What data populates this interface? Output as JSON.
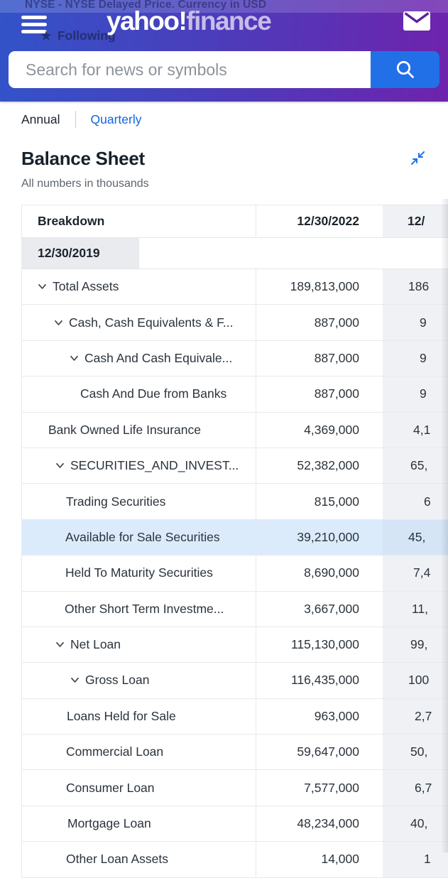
{
  "masthead": {
    "ticker_info": "NYSE - NYSE Delayed Price. Currency in USD",
    "following_label": "Following",
    "logo_part1": "yahoo!",
    "logo_part2": "finance",
    "search_placeholder": "Search for news or symbols"
  },
  "tabs": {
    "annual": "Annual",
    "quarterly": "Quarterly"
  },
  "section": {
    "title": "Balance Sheet",
    "units_note": "All numbers in thousands"
  },
  "table": {
    "col_breakdown": "Breakdown",
    "col_date_1": "12/30/2022",
    "col_date_2_partial": "12/",
    "col_date_wrapped": "12/30/2019",
    "rows": [
      {
        "label": "Total Assets",
        "value_2022": "189,813,000",
        "value_next_partial": "186",
        "expandable": true,
        "highlighted": false,
        "indent": 21,
        "pad3": 36
      },
      {
        "label": "Cash, Cash Equivalents & F...",
        "value_2022": "887,000",
        "value_next_partial": "9",
        "expandable": true,
        "highlighted": false,
        "indent": 44,
        "pad3": 52
      },
      {
        "label": "Cash And Cash Equivale...",
        "value_2022": "887,000",
        "value_next_partial": "9",
        "expandable": true,
        "highlighted": false,
        "indent": 66,
        "pad3": 52
      },
      {
        "label": "Cash And Due from Banks",
        "value_2022": "887,000",
        "value_next_partial": "9",
        "expandable": false,
        "highlighted": false,
        "indent": 82,
        "pad3": 52
      },
      {
        "label": "Bank Owned Life Insurance",
        "value_2022": "4,369,000",
        "value_next_partial": "4,1",
        "expandable": false,
        "highlighted": false,
        "indent": 37,
        "pad3": 43
      },
      {
        "label": "SECURITIES_AND_INVEST...",
        "value_2022": "52,382,000",
        "value_next_partial": "65,",
        "expandable": true,
        "highlighted": false,
        "indent": 46,
        "pad3": 39
      },
      {
        "label": "Trading Securities",
        "value_2022": "815,000",
        "value_next_partial": "6",
        "expandable": false,
        "highlighted": false,
        "indent": 62,
        "pad3": 58
      },
      {
        "label": "Available for Sale Securities",
        "value_2022": "39,210,000",
        "value_next_partial": "45,",
        "expandable": false,
        "highlighted": true,
        "indent": 61,
        "pad3": 36
      },
      {
        "label": "Held To Maturity Securities",
        "value_2022": "8,690,000",
        "value_next_partial": "7,4",
        "expandable": false,
        "highlighted": false,
        "indent": 61,
        "pad3": 43
      },
      {
        "label": "Other Short Term Investme...",
        "value_2022": "3,667,000",
        "value_next_partial": "11,",
        "expandable": false,
        "highlighted": false,
        "indent": 60,
        "pad3": 41
      },
      {
        "label": "Net Loan",
        "value_2022": "115,130,000",
        "value_next_partial": "99,",
        "expandable": true,
        "highlighted": false,
        "indent": 46,
        "pad3": 39
      },
      {
        "label": "Gross Loan",
        "value_2022": "116,435,000",
        "value_next_partial": "100",
        "expandable": true,
        "highlighted": false,
        "indent": 67,
        "pad3": 36
      },
      {
        "label": "Loans Held for Sale",
        "value_2022": "963,000",
        "value_next_partial": "2,7",
        "expandable": false,
        "highlighted": false,
        "indent": 63,
        "pad3": 45
      },
      {
        "label": "Commercial Loan",
        "value_2022": "59,647,000",
        "value_next_partial": "50,",
        "expandable": false,
        "highlighted": false,
        "indent": 62,
        "pad3": 39
      },
      {
        "label": "Consumer Loan",
        "value_2022": "7,577,000",
        "value_next_partial": "6,7",
        "expandable": false,
        "highlighted": false,
        "indent": 62,
        "pad3": 45
      },
      {
        "label": "Mortgage Loan",
        "value_2022": "48,234,000",
        "value_next_partial": "40,",
        "expandable": false,
        "highlighted": false,
        "indent": 64,
        "pad3": 39
      },
      {
        "label": "Other Loan Assets",
        "value_2022": "14,000",
        "value_next_partial": "1",
        "expandable": false,
        "highlighted": false,
        "indent": 62,
        "pad3": 58
      }
    ]
  },
  "colors": {
    "header_gradient_left": "#3353c8",
    "header_gradient_right": "#6e23ad",
    "search_button_blue": "#2270e8",
    "link_blue": "#1266e4",
    "highlight_row_blue": "#dcebfb",
    "col3_gray": "#eff1f4",
    "chip_gray": "#e9ebee",
    "text_dark": "#2b333c"
  }
}
